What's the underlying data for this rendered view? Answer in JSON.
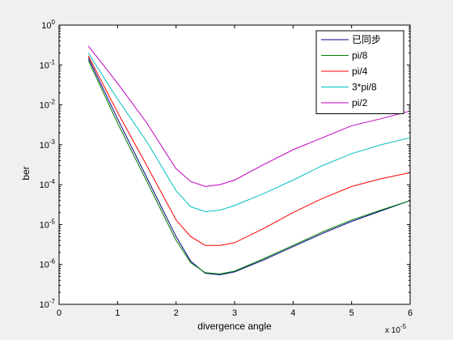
{
  "chart_data": {
    "type": "line",
    "title": "",
    "xlabel": "divergence angle",
    "ylabel": "ber",
    "x_exponent_label": "x 10",
    "x_exponent_power": "-5",
    "xlim": [
      0,
      6
    ],
    "ylim": [
      1e-07,
      1
    ],
    "yscale": "log",
    "grid": false,
    "legend_position": "top-right",
    "x_ticks": [
      "0",
      "1",
      "2",
      "3",
      "4",
      "5",
      "6"
    ],
    "y_ticks": [
      {
        "base": "10",
        "exp": "-7",
        "value": 1e-07
      },
      {
        "base": "10",
        "exp": "-6",
        "value": 1e-06
      },
      {
        "base": "10",
        "exp": "-5",
        "value": 1e-05
      },
      {
        "base": "10",
        "exp": "-4",
        "value": 0.0001
      },
      {
        "base": "10",
        "exp": "-3",
        "value": 0.001
      },
      {
        "base": "10",
        "exp": "-2",
        "value": 0.01
      },
      {
        "base": "10",
        "exp": "-1",
        "value": 0.1
      },
      {
        "base": "10",
        "exp": "0",
        "value": 1
      }
    ],
    "series": [
      {
        "name": "已同步",
        "color": "#00008b",
        "x": [
          0.5,
          1.0,
          1.5,
          2.0,
          2.25,
          2.5,
          2.75,
          3.0,
          3.5,
          4.0,
          4.5,
          5.0,
          5.5,
          6.0
        ],
        "y": [
          0.15,
          0.0045,
          0.00015,
          5e-06,
          1.2e-06,
          6e-07,
          5.5e-07,
          6.5e-07,
          1.3e-06,
          2.8e-06,
          6e-06,
          1.2e-05,
          2.2e-05,
          4e-05
        ]
      },
      {
        "name": "pi/8",
        "color": "#008000",
        "x": [
          0.5,
          1.0,
          1.5,
          2.0,
          2.25,
          2.5,
          2.75,
          3.0,
          3.5,
          4.0,
          4.5,
          5.0,
          5.5,
          6.0
        ],
        "y": [
          0.13,
          0.0035,
          0.00012,
          4e-06,
          1.1e-06,
          6.2e-07,
          5.8e-07,
          6.8e-07,
          1.4e-06,
          3e-06,
          6.5e-06,
          1.3e-05,
          2.3e-05,
          4e-05
        ]
      },
      {
        "name": "pi/4",
        "color": "#ff0000",
        "x": [
          0.5,
          1.0,
          1.5,
          2.0,
          2.25,
          2.5,
          2.75,
          3.0,
          3.5,
          4.0,
          4.5,
          5.0,
          5.5,
          6.0
        ],
        "y": [
          0.17,
          0.0065,
          0.0003,
          1.3e-05,
          5e-06,
          3e-06,
          3e-06,
          3.5e-06,
          8e-06,
          2e-05,
          4.5e-05,
          9e-05,
          0.00014,
          0.0002
        ]
      },
      {
        "name": "3*pi/8",
        "color": "#00bfbf",
        "x": [
          0.5,
          1.0,
          1.5,
          2.0,
          2.25,
          2.5,
          2.75,
          3.0,
          3.5,
          4.0,
          4.5,
          5.0,
          5.5,
          6.0
        ],
        "y": [
          0.2,
          0.014,
          0.0012,
          7e-05,
          2.8e-05,
          2.1e-05,
          2.3e-05,
          3e-05,
          6e-05,
          0.00013,
          0.0003,
          0.0006,
          0.001,
          0.0015
        ]
      },
      {
        "name": "pi/2",
        "color": "#bf00bf",
        "x": [
          0.5,
          1.0,
          1.5,
          2.0,
          2.25,
          2.5,
          2.75,
          3.0,
          3.5,
          4.0,
          4.5,
          5.0,
          5.5,
          6.0
        ],
        "y": [
          0.3,
          0.035,
          0.0035,
          0.00025,
          0.00012,
          9e-05,
          0.0001,
          0.00013,
          0.00032,
          0.00075,
          0.0015,
          0.003,
          0.0045,
          0.007
        ]
      }
    ]
  }
}
